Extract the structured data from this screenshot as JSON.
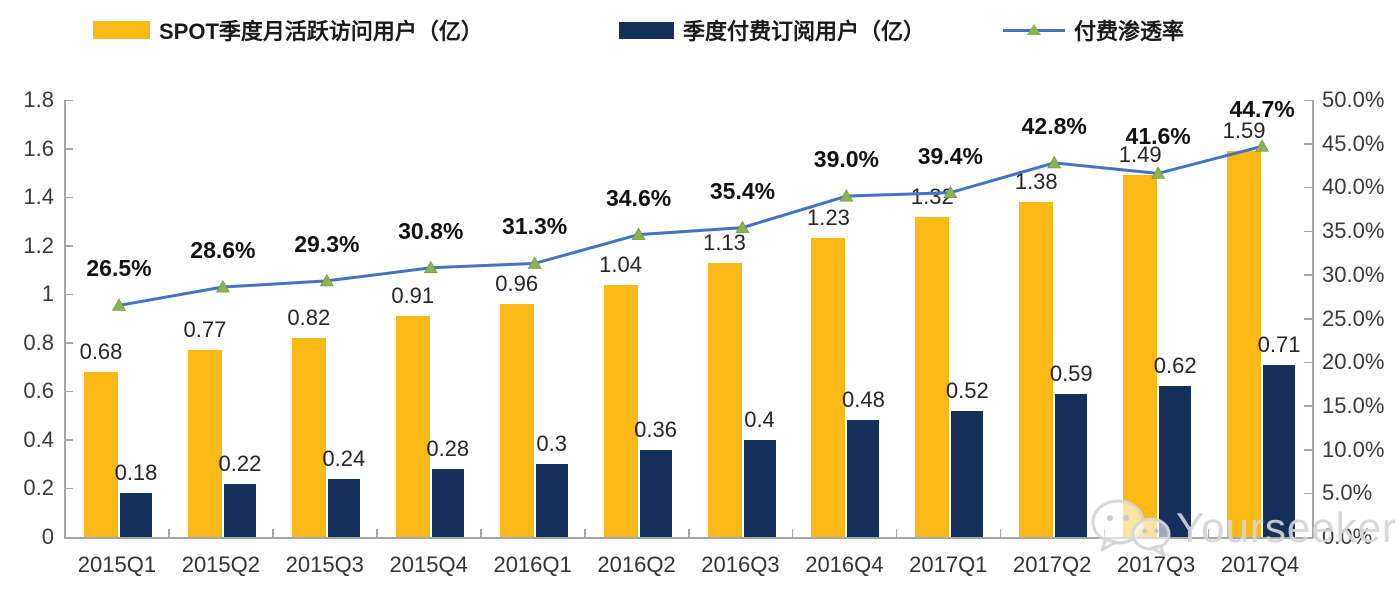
{
  "legend": {
    "items": [
      {
        "label": "SPOT季度月活跃访问用户（亿）",
        "swatch": "bar-yellow"
      },
      {
        "label": "季度付费订阅用户（亿）",
        "swatch": "bar-navy"
      },
      {
        "label": "付费渗透率",
        "swatch": "line-with-triangle-marker"
      }
    ]
  },
  "chart_data": {
    "type": "bar",
    "subtype": "grouped bars with overlaid line on secondary axis",
    "categories": [
      "2015Q1",
      "2015Q2",
      "2015Q3",
      "2015Q4",
      "2016Q1",
      "2016Q2",
      "2016Q3",
      "2016Q4",
      "2017Q1",
      "2017Q2",
      "2017Q3",
      "2017Q4"
    ],
    "series": [
      {
        "name": "SPOT季度月活跃访问用户（亿）",
        "type": "bar",
        "color": "#FBB917",
        "axis": "left",
        "values": [
          0.68,
          0.77,
          0.82,
          0.91,
          0.96,
          1.04,
          1.13,
          1.23,
          1.32,
          1.38,
          1.49,
          1.59
        ],
        "labels": [
          "0.68",
          "0.77",
          "0.82",
          "0.91",
          "0.96",
          "1.04",
          "1.13",
          "1.23",
          "1.32",
          "1.38",
          "1.49",
          "1.59"
        ]
      },
      {
        "name": "季度付费订阅用户（亿）",
        "type": "bar",
        "color": "#16305E",
        "axis": "left",
        "values": [
          0.18,
          0.22,
          0.24,
          0.28,
          0.3,
          0.36,
          0.4,
          0.48,
          0.52,
          0.59,
          0.62,
          0.71
        ],
        "labels": [
          "0.18",
          "0.22",
          "0.24",
          "0.28",
          "0.3",
          "0.36",
          "0.4",
          "0.48",
          "0.52",
          "0.59",
          "0.62",
          "0.71"
        ]
      },
      {
        "name": "付费渗透率",
        "type": "line",
        "color": "#4472C4",
        "marker": "triangle",
        "marker_color": "#8CB44E",
        "axis": "right",
        "values": [
          26.5,
          28.6,
          29.3,
          30.8,
          31.3,
          34.6,
          35.4,
          39.0,
          39.4,
          42.8,
          41.6,
          44.7
        ],
        "labels": [
          "26.5%",
          "28.6%",
          "29.3%",
          "30.8%",
          "31.3%",
          "34.6%",
          "35.4%",
          "39.0%",
          "39.4%",
          "42.8%",
          "41.6%",
          "44.7%"
        ]
      }
    ],
    "left_axis": {
      "min": 0,
      "max": 1.8,
      "step": 0.2,
      "ticks": [
        "0",
        "0.2",
        "0.4",
        "0.6",
        "0.8",
        "1",
        "1.2",
        "1.4",
        "1.6",
        "1.8"
      ],
      "tick_values": [
        0,
        0.2,
        0.4,
        0.6,
        0.8,
        1,
        1.2,
        1.4,
        1.6,
        1.8
      ]
    },
    "right_axis": {
      "min": 0,
      "max": 50,
      "step": 5,
      "ticks": [
        "0.0%",
        "5.0%",
        "10.0%",
        "15.0%",
        "20.0%",
        "25.0%",
        "30.0%",
        "35.0%",
        "40.0%",
        "45.0%",
        "50.0%"
      ],
      "tick_values": [
        0,
        5,
        10,
        15,
        20,
        25,
        30,
        35,
        40,
        45,
        50
      ]
    },
    "grid": "off",
    "legend_position": "top"
  },
  "colors": {
    "bar_mau": "#FBB917",
    "bar_subs": "#16305E",
    "line": "#4472C4",
    "marker": "#8CB44E",
    "axis": "#A6A6A6",
    "watermark": "#D5D5D5"
  },
  "watermark": {
    "text": "Yourseeker",
    "icon": "wechat-icon"
  }
}
